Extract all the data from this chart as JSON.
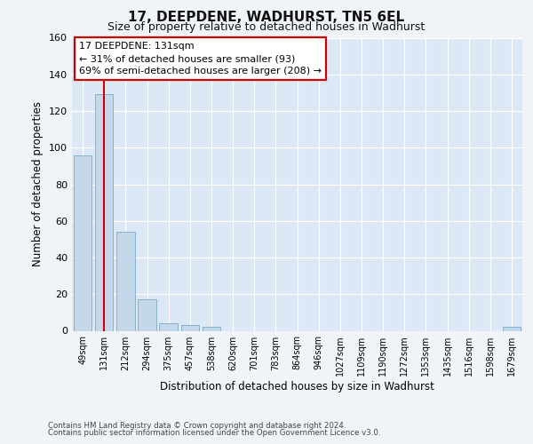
{
  "title1": "17, DEEPDENE, WADHURST, TN5 6EL",
  "title2": "Size of property relative to detached houses in Wadhurst",
  "xlabel": "Distribution of detached houses by size in Wadhurst",
  "ylabel": "Number of detached properties",
  "categories": [
    "49sqm",
    "131sqm",
    "212sqm",
    "294sqm",
    "375sqm",
    "457sqm",
    "538sqm",
    "620sqm",
    "701sqm",
    "783sqm",
    "864sqm",
    "946sqm",
    "1027sqm",
    "1109sqm",
    "1190sqm",
    "1272sqm",
    "1353sqm",
    "1435sqm",
    "1516sqm",
    "1598sqm",
    "1679sqm"
  ],
  "values": [
    96,
    129,
    54,
    17,
    4,
    3,
    2,
    0,
    0,
    0,
    0,
    0,
    0,
    0,
    0,
    0,
    0,
    0,
    0,
    0,
    2
  ],
  "bar_color": "#c5d8ea",
  "bar_edge_color": "#7aaac8",
  "highlight_index": 1,
  "highlight_line_color": "#cc0000",
  "annotation_text": "17 DEEPDENE: 131sqm\n← 31% of detached houses are smaller (93)\n69% of semi-detached houses are larger (208) →",
  "annotation_box_facecolor": "#ffffff",
  "annotation_box_edgecolor": "#cc0000",
  "ylim": [
    0,
    160
  ],
  "yticks": [
    0,
    20,
    40,
    60,
    80,
    100,
    120,
    140,
    160
  ],
  "fig_facecolor": "#f0f4f8",
  "plot_facecolor": "#dce8f5",
  "grid_color": "#ffffff",
  "footer1": "Contains HM Land Registry data © Crown copyright and database right 2024.",
  "footer2": "Contains public sector information licensed under the Open Government Licence v3.0."
}
